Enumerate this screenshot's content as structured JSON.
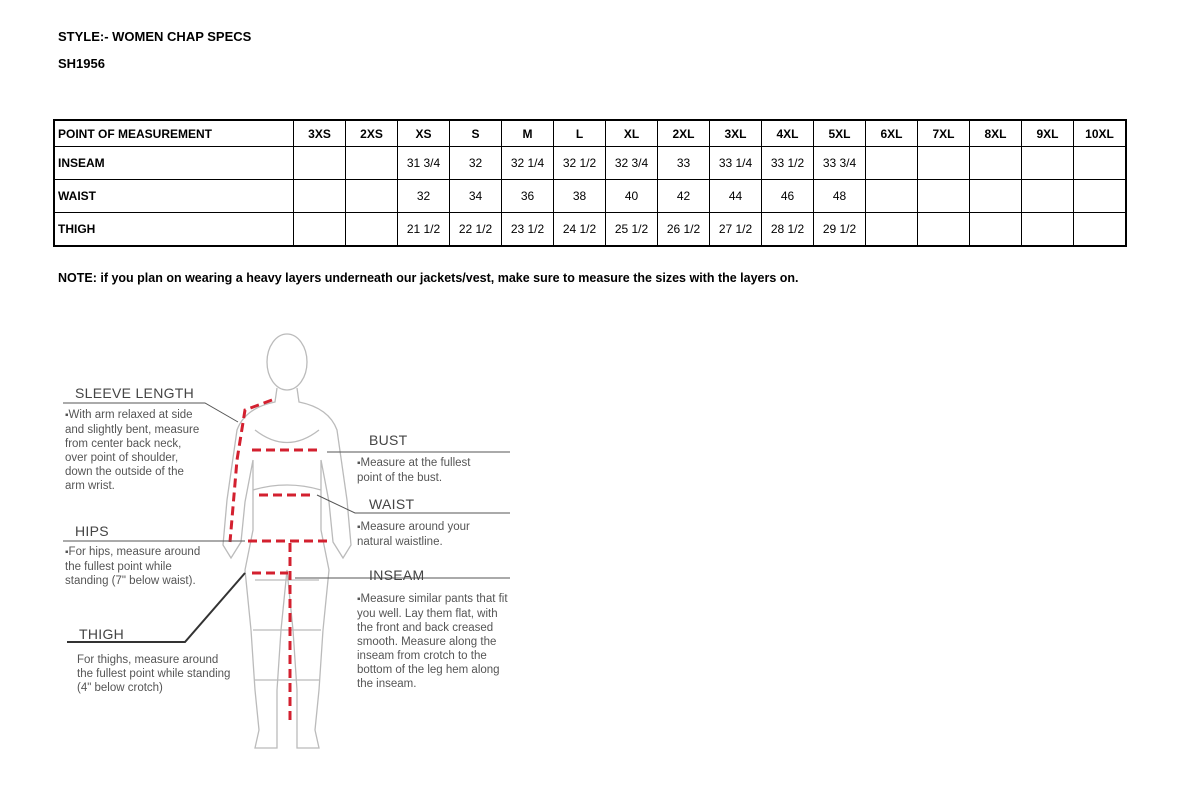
{
  "header": {
    "style": "STYLE:- WOMEN CHAP SPECS",
    "code": "SH1956"
  },
  "table": {
    "columns": [
      "POINT OF MEASUREMENT",
      "3XS",
      "2XS",
      "XS",
      "S",
      "M",
      "L",
      "XL",
      "2XL",
      "3XL",
      "4XL",
      "5XL",
      "6XL",
      "7XL",
      "8XL",
      "9XL",
      "10XL"
    ],
    "rows": [
      [
        "INSEAM",
        "",
        "",
        "31 3/4",
        "32",
        "32 1/4",
        "32 1/2",
        "32 3/4",
        "33",
        "33 1/4",
        "33 1/2",
        "33 3/4",
        "",
        "",
        "",
        "",
        ""
      ],
      [
        "WAIST",
        "",
        "",
        "32",
        "34",
        "36",
        "38",
        "40",
        "42",
        "44",
        "46",
        "48",
        "",
        "",
        "",
        "",
        ""
      ],
      [
        "THIGH",
        "",
        "",
        "21 1/2",
        "22 1/2",
        "23 1/2",
        "24 1/2",
        "25 1/2",
        "26 1/2",
        "27 1/2",
        "28 1/2",
        "29 1/2",
        "",
        "",
        "",
        "",
        ""
      ]
    ]
  },
  "note": "NOTE: if you plan on wearing a heavy layers underneath our jackets/vest, make sure to measure the sizes with the layers on.",
  "figure": {
    "accent_color": "#d3202f",
    "sleeve": {
      "label": "SLEEVE LENGTH",
      "text": "With arm relaxed at side and slightly bent, measure from center back neck, over point of shoulder, down the outside of the arm wrist."
    },
    "hips": {
      "label": "HIPS",
      "text": "For hips, measure around the fullest point while standing (7\" below waist)."
    },
    "thigh": {
      "label": "THIGH",
      "text": "For thighs, measure around the fullest point while standing (4\" below crotch)"
    },
    "bust": {
      "label": "BUST",
      "text": "Measure at the fullest point of the bust."
    },
    "waist": {
      "label": "WAIST",
      "text": "Measure around your natural waistline."
    },
    "inseam": {
      "label": "INSEAM",
      "text": "Measure similar pants that fit you well. Lay them flat, with the front and back creased smooth. Measure along the inseam from crotch to the bottom of the leg hem along the inseam."
    }
  }
}
